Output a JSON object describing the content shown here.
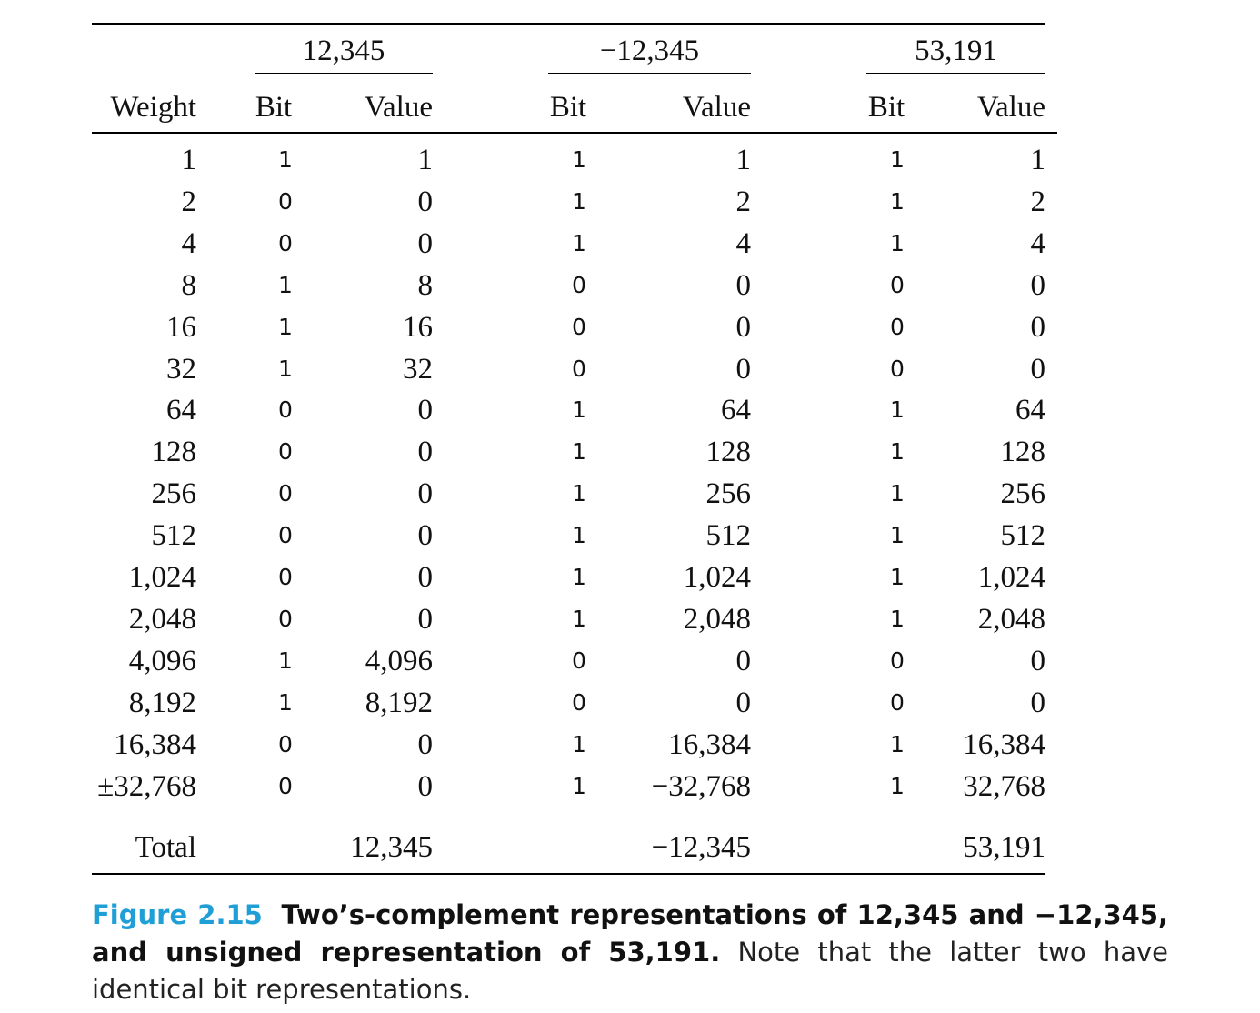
{
  "table": {
    "groups": [
      "12,345",
      "−12,345",
      "53,191"
    ],
    "headers": {
      "weight": "Weight",
      "bit": "Bit",
      "value": "Value"
    },
    "rows": [
      {
        "weight": "1",
        "b1": "1",
        "v1": "1",
        "b2": "1",
        "v2": "1",
        "b3": "1",
        "v3": "1"
      },
      {
        "weight": "2",
        "b1": "0",
        "v1": "0",
        "b2": "1",
        "v2": "2",
        "b3": "1",
        "v3": "2"
      },
      {
        "weight": "4",
        "b1": "0",
        "v1": "0",
        "b2": "1",
        "v2": "4",
        "b3": "1",
        "v3": "4"
      },
      {
        "weight": "8",
        "b1": "1",
        "v1": "8",
        "b2": "0",
        "v2": "0",
        "b3": "0",
        "v3": "0"
      },
      {
        "weight": "16",
        "b1": "1",
        "v1": "16",
        "b2": "0",
        "v2": "0",
        "b3": "0",
        "v3": "0"
      },
      {
        "weight": "32",
        "b1": "1",
        "v1": "32",
        "b2": "0",
        "v2": "0",
        "b3": "0",
        "v3": "0"
      },
      {
        "weight": "64",
        "b1": "0",
        "v1": "0",
        "b2": "1",
        "v2": "64",
        "b3": "1",
        "v3": "64"
      },
      {
        "weight": "128",
        "b1": "0",
        "v1": "0",
        "b2": "1",
        "v2": "128",
        "b3": "1",
        "v3": "128"
      },
      {
        "weight": "256",
        "b1": "0",
        "v1": "0",
        "b2": "1",
        "v2": "256",
        "b3": "1",
        "v3": "256"
      },
      {
        "weight": "512",
        "b1": "0",
        "v1": "0",
        "b2": "1",
        "v2": "512",
        "b3": "1",
        "v3": "512"
      },
      {
        "weight": "1,024",
        "b1": "0",
        "v1": "0",
        "b2": "1",
        "v2": "1,024",
        "b3": "1",
        "v3": "1,024"
      },
      {
        "weight": "2,048",
        "b1": "0",
        "v1": "0",
        "b2": "1",
        "v2": "2,048",
        "b3": "1",
        "v3": "2,048"
      },
      {
        "weight": "4,096",
        "b1": "1",
        "v1": "4,096",
        "b2": "0",
        "v2": "0",
        "b3": "0",
        "v3": "0"
      },
      {
        "weight": "8,192",
        "b1": "1",
        "v1": "8,192",
        "b2": "0",
        "v2": "0",
        "b3": "0",
        "v3": "0"
      },
      {
        "weight": "16,384",
        "b1": "0",
        "v1": "0",
        "b2": "1",
        "v2": "16,384",
        "b3": "1",
        "v3": "16,384"
      },
      {
        "weight": "±32,768",
        "b1": "0",
        "v1": "0",
        "b2": "1",
        "v2": "−32,768",
        "b3": "1",
        "v3": "32,768"
      }
    ],
    "total": {
      "label": "Total",
      "v1": "12,345",
      "v2": "−12,345",
      "v3": "53,191"
    }
  },
  "caption": {
    "figure": "Figure 2.15",
    "bold": "Two’s-complement representations of 12,345 and −12,345, and unsigned representation of 53,191.",
    "text": " Note that the latter two have identical bit representations."
  }
}
